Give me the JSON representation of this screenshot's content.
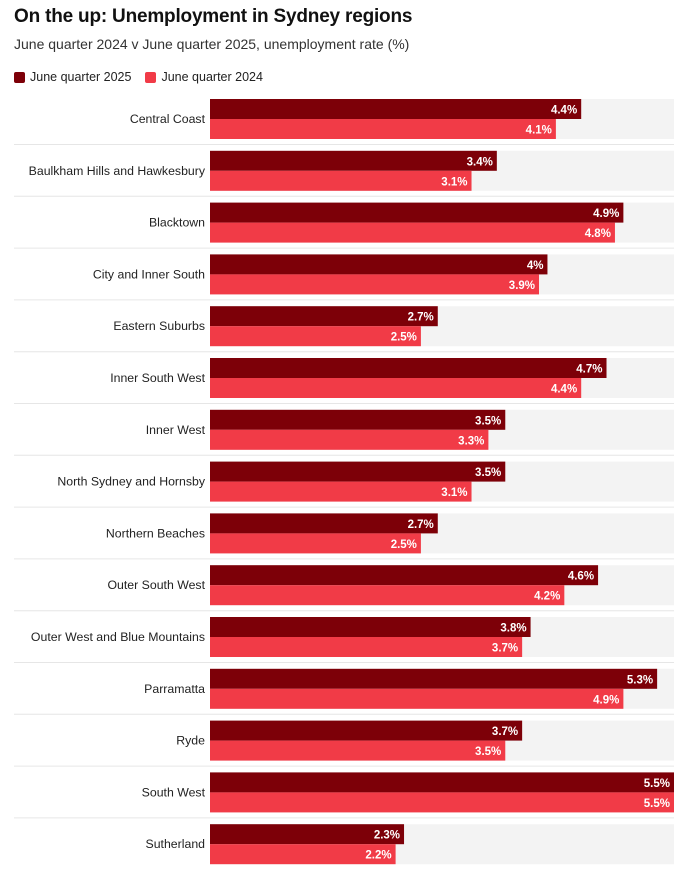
{
  "chart_data": {
    "type": "bar",
    "orientation": "horizontal",
    "title": "On the up: Unemployment in Sydney regions",
    "subtitle": "June quarter 2024 v June quarter 2025, unemployment rate (%)",
    "categories": [
      "Central Coast",
      "Baulkham Hills and Hawkesbury",
      "Blacktown",
      "City and Inner South",
      "Eastern Suburbs",
      "Inner South West",
      "Inner West",
      "North Sydney and Hornsby",
      "Northern Beaches",
      "Outer South West",
      "Outer West and Blue Mountains",
      "Parramatta",
      "Ryde",
      "South West",
      "Sutherland"
    ],
    "series": [
      {
        "name": "June quarter 2025",
        "color": "#7d0008",
        "values": [
          4.4,
          3.4,
          4.9,
          4,
          2.7,
          4.7,
          3.5,
          3.5,
          2.7,
          4.6,
          3.8,
          5.3,
          3.7,
          5.5,
          2.3
        ],
        "labels": [
          "4.4%",
          "3.4%",
          "4.9%",
          "4%",
          "2.7%",
          "4.7%",
          "3.5%",
          "3.5%",
          "2.7%",
          "4.6%",
          "3.8%",
          "5.3%",
          "3.7%",
          "5.5%",
          "2.3%"
        ]
      },
      {
        "name": "June quarter 2024",
        "color": "#f13b47",
        "values": [
          4.1,
          3.1,
          4.8,
          3.9,
          2.5,
          4.4,
          3.3,
          3.1,
          2.5,
          4.2,
          3.7,
          4.9,
          3.5,
          5.5,
          2.2
        ],
        "labels": [
          "4.1%",
          "3.1%",
          "4.8%",
          "3.9%",
          "2.5%",
          "4.4%",
          "3.3%",
          "3.1%",
          "2.5%",
          "4.2%",
          "3.7%",
          "4.9%",
          "3.5%",
          "5.5%",
          "2.2%"
        ]
      }
    ],
    "xlim": [
      0,
      5.5
    ],
    "background_track_color": "#f3f3f3",
    "legend": "top-left",
    "grid": false
  }
}
